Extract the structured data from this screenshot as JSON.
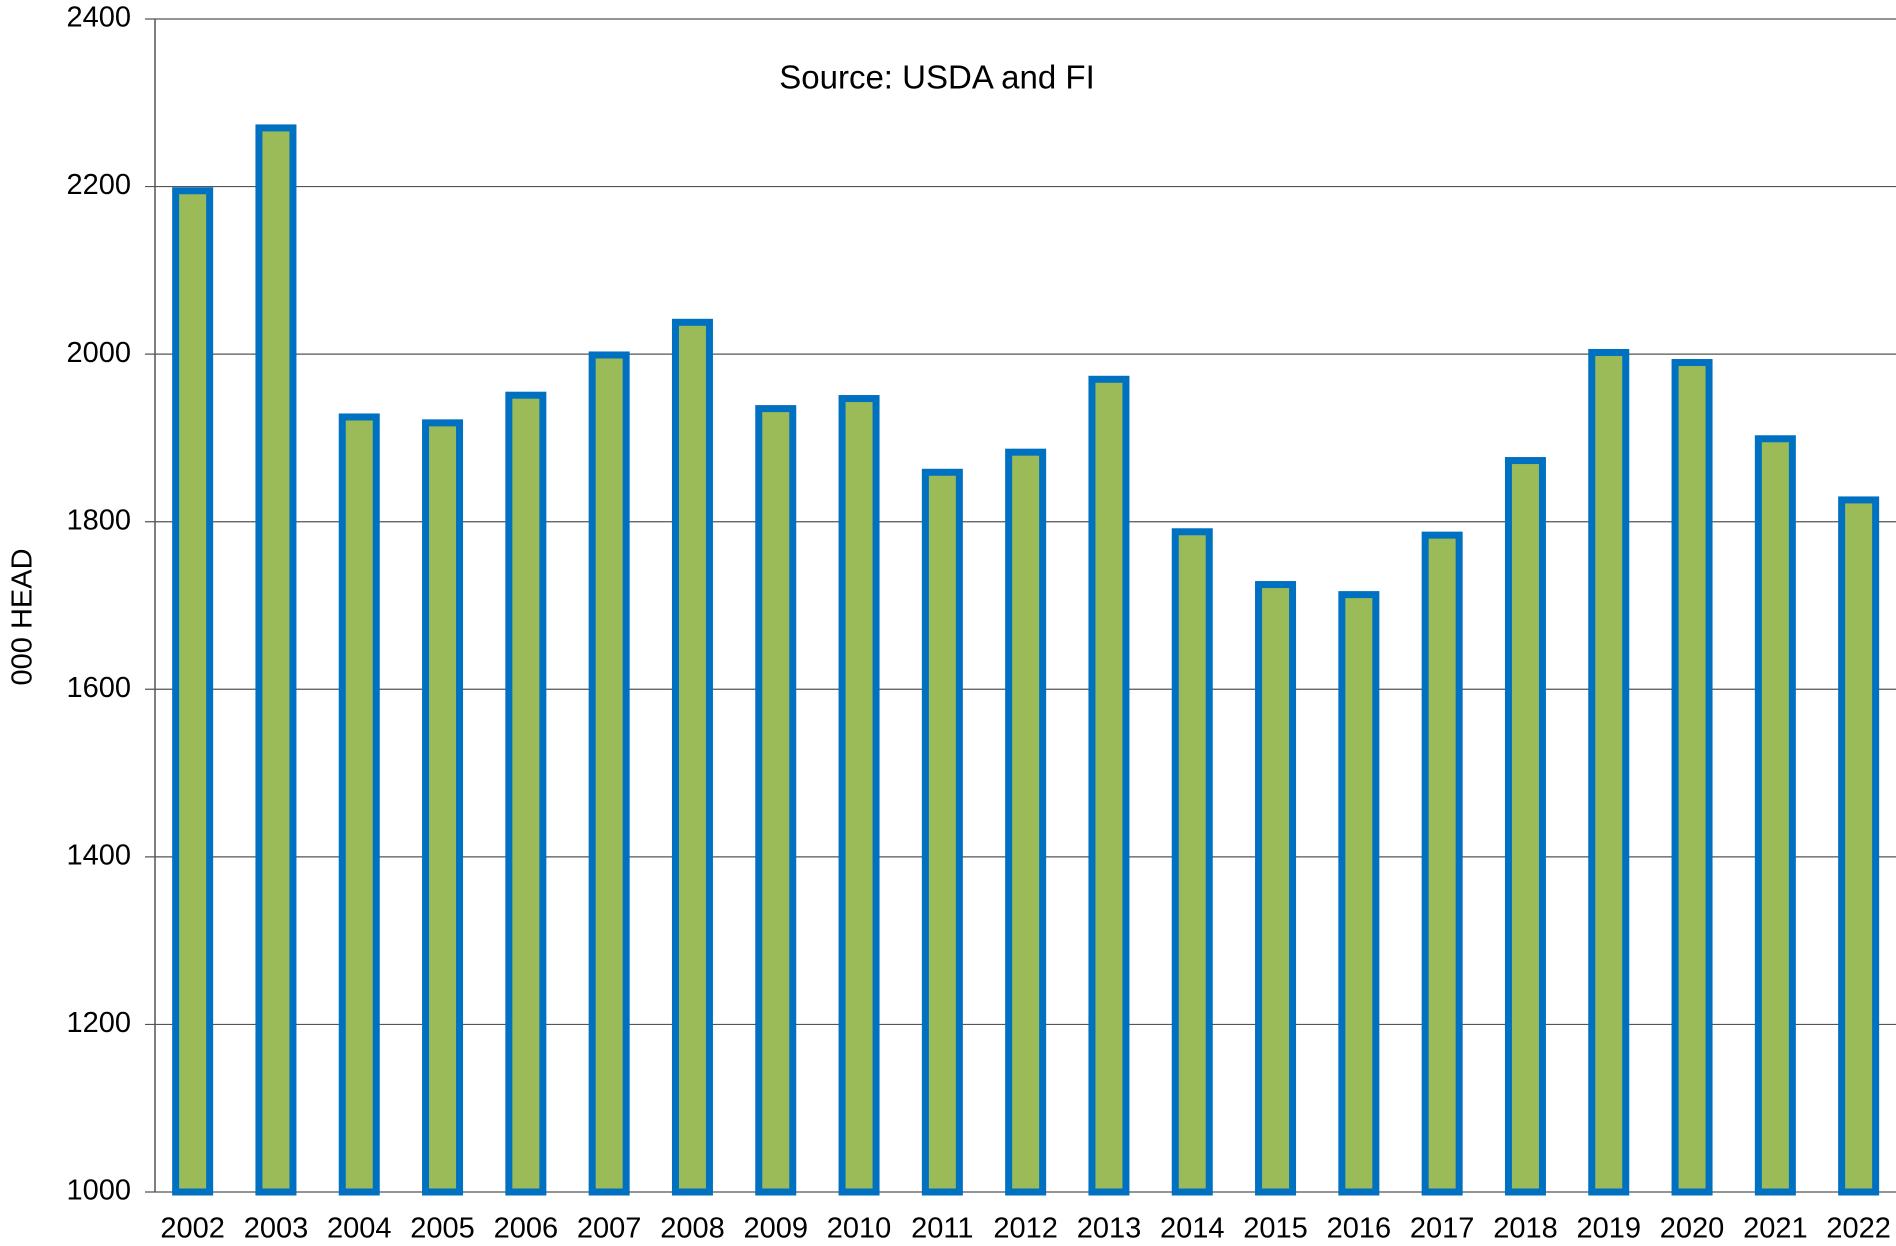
{
  "chart_data": {
    "type": "bar",
    "annotation": "Source: USDA and FI",
    "y_label": "000 HEAD",
    "categories": [
      "2002",
      "2003",
      "2004",
      "2005",
      "2006",
      "2007",
      "2008",
      "2009",
      "2010",
      "2011",
      "2012",
      "2013",
      "2014",
      "2015",
      "2016",
      "2017",
      "2018",
      "2019",
      "2020",
      "2021",
      "2022"
    ],
    "values": [
      2195,
      2270,
      1925,
      1918,
      1951,
      1999,
      2038,
      1935,
      1947,
      1859,
      1883,
      1970,
      1788,
      1725,
      1713,
      1784,
      1873,
      2002,
      1990,
      1899,
      1826
    ],
    "color": "#9bbb59",
    "edge_color": "#0070c0",
    "ylim": [
      1000,
      2400
    ],
    "yticks": [
      1000,
      1200,
      1400,
      1600,
      1800,
      2000,
      2200,
      2400
    ],
    "grid": true
  }
}
